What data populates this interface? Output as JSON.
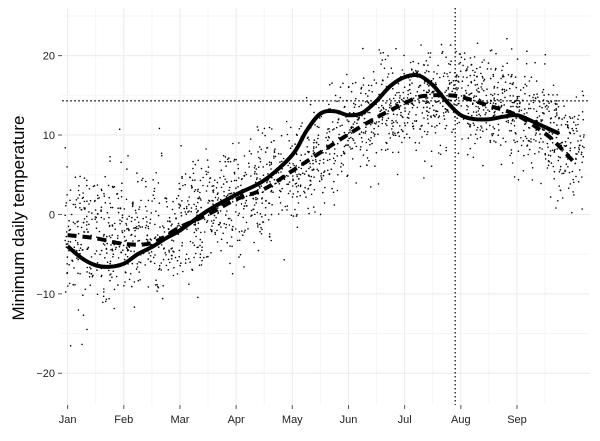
{
  "chart_data": {
    "type": "scatter",
    "title": "",
    "xlabel": "",
    "ylabel": "Minimum daily temperature",
    "x_unit": "month",
    "x_ticks": [
      "Jan",
      "Feb",
      "Mar",
      "Apr",
      "May",
      "Jun",
      "Jul",
      "Aug",
      "Sep"
    ],
    "y_ticks": [
      -20,
      -10,
      0,
      10,
      20
    ],
    "ylim": [
      -24,
      26
    ],
    "xlim_months": [
      -0.1,
      9.3
    ],
    "grid": true,
    "background": "#ffffff",
    "grid_color": "#ebebeb",
    "point_color": "#000000",
    "series": [
      {
        "style": "solid",
        "x": [
          0.0,
          0.25,
          0.5,
          0.75,
          1.0,
          1.25,
          1.5,
          1.75,
          2.0,
          2.5,
          3.0,
          3.5,
          4.0,
          4.25,
          4.5,
          4.75,
          5.0,
          5.25,
          5.5,
          5.75,
          6.0,
          6.25,
          6.5,
          6.75,
          7.0,
          7.25,
          7.5,
          7.75,
          8.0,
          8.25,
          8.5,
          8.75
        ],
        "y": [
          -4.0,
          -5.5,
          -6.4,
          -6.6,
          -6.2,
          -5.0,
          -4.1,
          -3.0,
          -2.0,
          0.5,
          2.5,
          4.3,
          7.5,
          10.5,
          12.7,
          13.0,
          12.5,
          12.8,
          14.3,
          16.2,
          17.3,
          17.5,
          16.3,
          14.2,
          12.5,
          12.0,
          12.0,
          12.3,
          12.5,
          11.8,
          11.0,
          10.2
        ]
      },
      {
        "style": "dashed",
        "x": [
          0.0,
          0.5,
          1.0,
          1.5,
          2.0,
          2.5,
          3.0,
          3.5,
          4.0,
          4.5,
          5.0,
          5.5,
          6.0,
          6.25,
          6.5,
          6.75,
          7.0,
          7.5,
          8.0,
          8.5,
          8.75,
          9.0
        ],
        "y": [
          -2.6,
          -3.0,
          -3.7,
          -3.6,
          -1.6,
          0.0,
          1.9,
          3.2,
          5.5,
          7.8,
          10.1,
          12.2,
          14.0,
          14.8,
          15.0,
          15.0,
          14.8,
          13.7,
          12.5,
          10.2,
          8.6,
          6.7
        ]
      }
    ],
    "reference_lines": [
      {
        "orientation": "horizontal",
        "value": 14.3,
        "style": "dotted"
      },
      {
        "orientation": "vertical",
        "value": 6.9,
        "style": "dotted"
      }
    ],
    "scatter_points": {
      "count": 2200,
      "description_by_month_mean_and_spread": [
        [
          0.0,
          -2.5,
          4.0
        ],
        [
          1.0,
          -3.0,
          4.5
        ],
        [
          2.0,
          -2.0,
          4.0
        ],
        [
          3.0,
          1.5,
          3.6
        ],
        [
          4.0,
          4.8,
          3.3
        ],
        [
          5.0,
          10.5,
          3.0
        ],
        [
          6.0,
          14.3,
          3.0
        ],
        [
          7.0,
          15.0,
          3.0
        ],
        [
          8.0,
          13.0,
          3.2
        ],
        [
          9.0,
          8.0,
          3.5
        ]
      ]
    }
  }
}
